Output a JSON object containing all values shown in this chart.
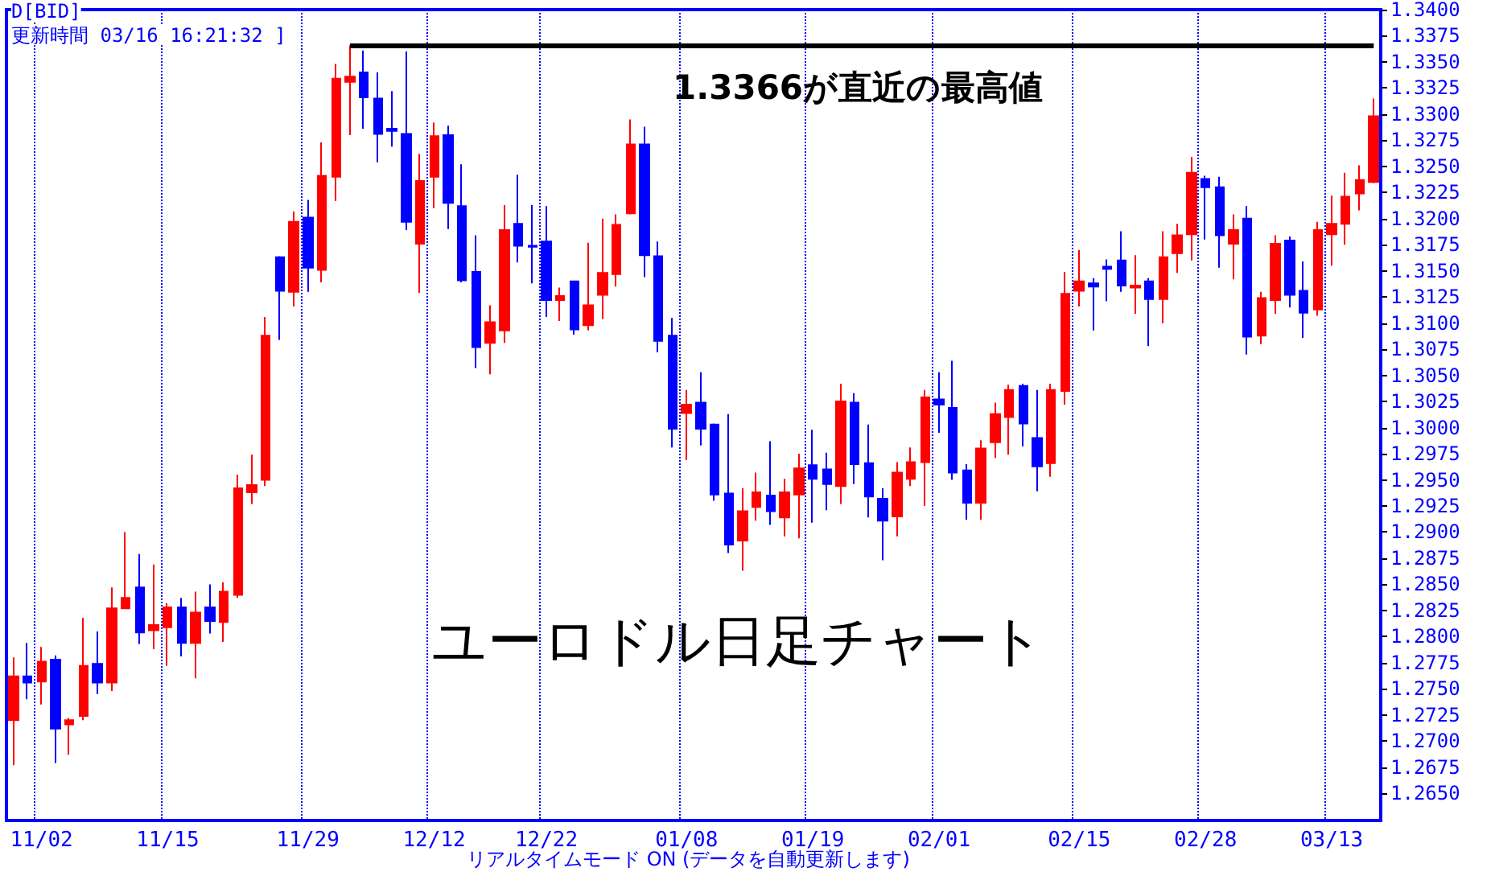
{
  "chart_data": {
    "type": "candlestick",
    "title": "ユーロドル日足チャート",
    "annotations": [
      "D[BID]",
      "更新時間 03/16 16:21:32 ]",
      "1.3366が直近の最高値",
      "リアルタイムモード ON (データを自動更新します)"
    ],
    "categories": [
      null,
      null,
      "11/02",
      null,
      null,
      null,
      null,
      null,
      null,
      null,
      null,
      "11/15",
      null,
      null,
      null,
      null,
      null,
      null,
      null,
      null,
      null,
      "11/29",
      null,
      null,
      null,
      null,
      null,
      null,
      null,
      null,
      "12/12",
      null,
      null,
      null,
      null,
      null,
      null,
      null,
      "12/22",
      null,
      null,
      null,
      null,
      null,
      null,
      null,
      null,
      null,
      "01/08",
      null,
      null,
      null,
      null,
      null,
      null,
      null,
      null,
      "01/19",
      null,
      null,
      null,
      null,
      null,
      null,
      null,
      null,
      "02/01",
      null,
      null,
      null,
      null,
      null,
      null,
      null,
      null,
      null,
      "02/15",
      null,
      null,
      null,
      null,
      null,
      null,
      null,
      null,
      "02/28",
      null,
      null,
      null,
      null,
      null,
      null,
      null,
      null,
      "03/13",
      null,
      null,
      null
    ],
    "ohlc": [
      [
        1.272,
        1.278,
        1.2677,
        1.2762
      ],
      [
        1.2762,
        1.2794,
        1.274,
        1.2756
      ],
      [
        1.2757,
        1.279,
        1.2735,
        1.2776
      ],
      [
        1.2778,
        1.2782,
        1.2679,
        1.2712
      ],
      [
        1.2716,
        1.2722,
        1.2687,
        1.272
      ],
      [
        1.2724,
        1.2818,
        1.272,
        1.2772
      ],
      [
        1.2774,
        1.2805,
        1.2745,
        1.2756
      ],
      [
        1.2756,
        1.2847,
        1.2748,
        1.2827
      ],
      [
        1.2827,
        1.29,
        1.2827,
        1.2837
      ],
      [
        1.2847,
        1.2879,
        1.2793,
        1.2804
      ],
      [
        1.2806,
        1.2869,
        1.2788,
        1.2811
      ],
      [
        1.2809,
        1.2832,
        1.2772,
        1.2828
      ],
      [
        1.2828,
        1.2837,
        1.2781,
        1.2794
      ],
      [
        1.2794,
        1.2843,
        1.276,
        1.2823
      ],
      [
        1.2828,
        1.285,
        1.2803,
        1.2815
      ],
      [
        1.2814,
        1.2852,
        1.2795,
        1.2843
      ],
      [
        1.284,
        1.2955,
        1.2837,
        1.2942
      ],
      [
        1.2938,
        1.2974,
        1.2927,
        1.2945
      ],
      [
        1.295,
        1.3106,
        1.2944,
        1.3088
      ],
      [
        1.3163,
        1.3164,
        1.3084,
        1.3131
      ],
      [
        1.313,
        1.3207,
        1.3116,
        1.3197
      ],
      [
        1.3201,
        1.3218,
        1.313,
        1.3153
      ],
      [
        1.3151,
        1.3273,
        1.3139,
        1.3241
      ],
      [
        1.324,
        1.3348,
        1.3217,
        1.3334
      ],
      [
        1.3331,
        1.3366,
        1.328,
        1.3336
      ],
      [
        1.334,
        1.3361,
        1.3286,
        1.3316
      ],
      [
        1.3315,
        1.334,
        1.3254,
        1.3281
      ],
      [
        1.3286,
        1.3322,
        1.3269,
        1.3284
      ],
      [
        1.3281,
        1.336,
        1.3189,
        1.3197
      ],
      [
        1.3176,
        1.3262,
        1.3129,
        1.3236
      ],
      [
        1.324,
        1.3292,
        1.321,
        1.3279
      ],
      [
        1.328,
        1.3289,
        1.319,
        1.3215
      ],
      [
        1.3212,
        1.3252,
        1.3139,
        1.3141
      ],
      [
        1.3149,
        1.3184,
        1.3057,
        1.3077
      ],
      [
        1.3081,
        1.3117,
        1.3051,
        1.3101
      ],
      [
        1.3093,
        1.3213,
        1.3081,
        1.3189
      ],
      [
        1.3195,
        1.3242,
        1.3158,
        1.3174
      ],
      [
        1.3174,
        1.3213,
        1.3138,
        1.3173
      ],
      [
        1.3178,
        1.3212,
        1.3106,
        1.3122
      ],
      [
        1.3122,
        1.3134,
        1.3102,
        1.3126
      ],
      [
        1.314,
        1.314,
        1.3089,
        1.3094
      ],
      [
        1.3098,
        1.3177,
        1.3093,
        1.3117
      ],
      [
        1.3127,
        1.32,
        1.3104,
        1.3148
      ],
      [
        1.3147,
        1.3204,
        1.3135,
        1.3194
      ],
      [
        1.3205,
        1.3295,
        1.3204,
        1.3271
      ],
      [
        1.3271,
        1.3288,
        1.3144,
        1.3165
      ],
      [
        1.3164,
        1.3178,
        1.3072,
        1.3083
      ],
      [
        1.3088,
        1.3105,
        1.2981,
        1.2999
      ],
      [
        1.3014,
        1.3036,
        1.2969,
        1.3022
      ],
      [
        1.3024,
        1.3053,
        1.2983,
        1.2999
      ],
      [
        1.3003,
        1.3004,
        1.293,
        1.2936
      ],
      [
        1.2937,
        1.3013,
        1.288,
        1.2888
      ],
      [
        1.2892,
        1.2942,
        1.2863,
        1.292
      ],
      [
        1.2924,
        1.2957,
        1.2911,
        1.2938
      ],
      [
        1.2935,
        1.2987,
        1.2907,
        1.292
      ],
      [
        1.2914,
        1.2951,
        1.2896,
        1.2938
      ],
      [
        1.2936,
        1.2975,
        1.2894,
        1.2961
      ],
      [
        1.2964,
        1.2998,
        1.2909,
        1.2951
      ],
      [
        1.296,
        1.2976,
        1.2921,
        1.2946
      ],
      [
        1.2944,
        1.3042,
        1.2927,
        1.3025
      ],
      [
        1.3024,
        1.3033,
        1.2946,
        1.2965
      ],
      [
        1.2966,
        1.3003,
        1.2914,
        1.2934
      ],
      [
        1.2932,
        1.2942,
        1.2873,
        1.2911
      ],
      [
        1.2915,
        1.2967,
        1.2896,
        1.2957
      ],
      [
        1.2951,
        1.2981,
        1.2944,
        1.2967
      ],
      [
        1.2967,
        1.3036,
        1.2925,
        1.3029
      ],
      [
        1.3027,
        1.3053,
        1.2995,
        1.3022
      ],
      [
        1.3019,
        1.3064,
        1.295,
        1.2957
      ],
      [
        1.2959,
        1.2965,
        1.2912,
        1.2928
      ],
      [
        1.2928,
        1.2988,
        1.2912,
        1.298
      ],
      [
        1.2986,
        1.3024,
        1.2971,
        1.3013
      ],
      [
        1.301,
        1.3041,
        1.2974,
        1.3036
      ],
      [
        1.304,
        1.3042,
        1.2982,
        1.3004
      ],
      [
        1.299,
        1.3036,
        1.2939,
        1.2963
      ],
      [
        1.2966,
        1.3042,
        1.2953,
        1.3036
      ],
      [
        1.3035,
        1.3149,
        1.3022,
        1.3128
      ],
      [
        1.3131,
        1.317,
        1.3116,
        1.314
      ],
      [
        1.3138,
        1.3143,
        1.3093,
        1.3135
      ],
      [
        1.3154,
        1.3161,
        1.3121,
        1.3152
      ],
      [
        1.316,
        1.3188,
        1.313,
        1.3136
      ],
      [
        1.3134,
        1.3165,
        1.3109,
        1.3136
      ],
      [
        1.314,
        1.3143,
        1.3078,
        1.3123
      ],
      [
        1.3123,
        1.3188,
        1.31,
        1.3163
      ],
      [
        1.3167,
        1.3195,
        1.3148,
        1.3184
      ],
      [
        1.3185,
        1.3259,
        1.316,
        1.3244
      ],
      [
        1.3238,
        1.3241,
        1.318,
        1.323
      ],
      [
        1.323,
        1.324,
        1.3153,
        1.3184
      ],
      [
        1.3176,
        1.3204,
        1.3142,
        1.3189
      ],
      [
        1.32,
        1.3212,
        1.307,
        1.3087
      ],
      [
        1.3088,
        1.313,
        1.308,
        1.3124
      ],
      [
        1.3122,
        1.3184,
        1.3109,
        1.3176
      ],
      [
        1.3179,
        1.3183,
        1.3115,
        1.3127
      ],
      [
        1.3131,
        1.3159,
        1.3086,
        1.311
      ],
      [
        1.3113,
        1.3197,
        1.3107,
        1.3189
      ],
      [
        1.3185,
        1.3222,
        1.3155,
        1.3195
      ],
      [
        1.3195,
        1.3244,
        1.3175,
        1.3221
      ],
      [
        1.3224,
        1.3251,
        1.3208,
        1.3237
      ],
      [
        1.3235,
        1.3315,
        1.3234,
        1.3298
      ]
    ],
    "colors": [
      "#ff0000",
      "#0000ff",
      "#ff0000",
      "#0000ff",
      "#ff0000",
      "#ff0000",
      "#0000ff",
      "#ff0000",
      "#ff0000",
      "#0000ff",
      "#ff0000",
      "#ff0000",
      "#0000ff",
      "#ff0000",
      "#0000ff",
      "#ff0000",
      "#ff0000",
      "#ff0000",
      "#ff0000",
      "#0000ff",
      "#ff0000",
      "#0000ff",
      "#ff0000",
      "#ff0000",
      "#ff0000",
      "#0000ff",
      "#0000ff",
      "#0000ff",
      "#0000ff",
      "#ff0000",
      "#ff0000",
      "#0000ff",
      "#0000ff",
      "#0000ff",
      "#ff0000",
      "#ff0000",
      "#0000ff",
      "#0000ff",
      "#0000ff",
      "#ff0000",
      "#0000ff",
      "#ff0000",
      "#ff0000",
      "#ff0000",
      "#ff0000",
      "#0000ff",
      "#0000ff",
      "#0000ff",
      "#ff0000",
      "#0000ff",
      "#0000ff",
      "#0000ff",
      "#ff0000",
      "#ff0000",
      "#0000ff",
      "#ff0000",
      "#ff0000",
      "#0000ff",
      "#0000ff",
      "#ff0000",
      "#0000ff",
      "#0000ff",
      "#0000ff",
      "#ff0000",
      "#ff0000",
      "#ff0000",
      "#0000ff",
      "#0000ff",
      "#0000ff",
      "#ff0000",
      "#ff0000",
      "#ff0000",
      "#0000ff",
      "#0000ff",
      "#ff0000",
      "#ff0000",
      "#ff0000",
      "#0000ff",
      "#0000ff",
      "#0000ff",
      "#ff0000",
      "#0000ff",
      "#ff0000",
      "#ff0000",
      "#ff0000",
      "#0000ff",
      "#0000ff",
      "#ff0000",
      "#0000ff",
      "#ff0000",
      "#ff0000",
      "#0000ff",
      "#0000ff",
      "#ff0000",
      "#ff0000",
      "#ff0000",
      "#ff0000",
      "#ff0000"
    ],
    "ylim": [
      1.2624,
      1.34
    ],
    "yticks": [
      {
        "value": 1.265,
        "label": "1.2650"
      },
      {
        "value": 1.2675,
        "label": "1.2675"
      },
      {
        "value": 1.27,
        "label": "1.2700"
      },
      {
        "value": 1.2725,
        "label": "1.2725"
      },
      {
        "value": 1.275,
        "label": "1.2750"
      },
      {
        "value": 1.2775,
        "label": "1.2775"
      },
      {
        "value": 1.28,
        "label": "1.2800"
      },
      {
        "value": 1.2825,
        "label": "1.2825"
      },
      {
        "value": 1.285,
        "label": "1.2850"
      },
      {
        "value": 1.2875,
        "label": "1.2875"
      },
      {
        "value": 1.29,
        "label": "1.2900"
      },
      {
        "value": 1.2925,
        "label": "1.2925"
      },
      {
        "value": 1.295,
        "label": "1.2950"
      },
      {
        "value": 1.2975,
        "label": "1.2975"
      },
      {
        "value": 1.3,
        "label": "1.3000"
      },
      {
        "value": 1.3025,
        "label": "1.3025"
      },
      {
        "value": 1.305,
        "label": "1.3050"
      },
      {
        "value": 1.3075,
        "label": "1.3075"
      },
      {
        "value": 1.31,
        "label": "1.3100"
      },
      {
        "value": 1.3125,
        "label": "1.3125"
      },
      {
        "value": 1.315,
        "label": "1.3150"
      },
      {
        "value": 1.3175,
        "label": "1.3175"
      },
      {
        "value": 1.32,
        "label": "1.3200"
      },
      {
        "value": 1.3225,
        "label": "1.3225"
      },
      {
        "value": 1.325,
        "label": "1.3250"
      },
      {
        "value": 1.3275,
        "label": "1.3275"
      },
      {
        "value": 1.33,
        "label": "1.3300"
      },
      {
        "value": 1.3325,
        "label": "1.3325"
      },
      {
        "value": 1.335,
        "label": "1.3350"
      },
      {
        "value": 1.3375,
        "label": "1.3375"
      },
      {
        "value": 1.34,
        "label": "1.3400"
      }
    ],
    "ref_lines": [
      {
        "axis": "y",
        "value": 1.3366,
        "color": "#000000"
      }
    ],
    "grid": "x"
  }
}
